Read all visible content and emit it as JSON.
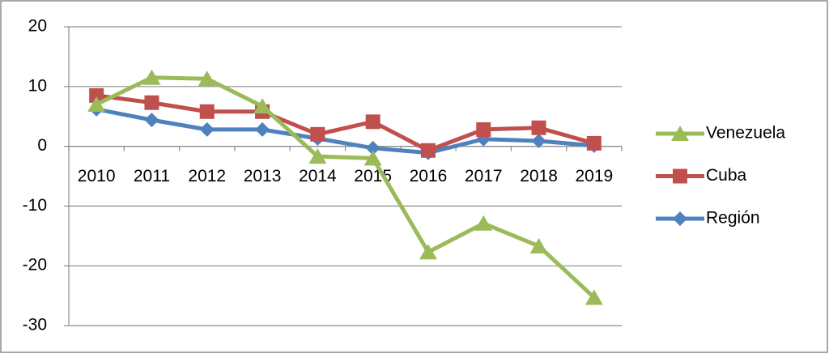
{
  "chart_data": {
    "type": "line",
    "categories": [
      "2010",
      "2011",
      "2012",
      "2013",
      "2014",
      "2015",
      "2016",
      "2017",
      "2018",
      "2019"
    ],
    "series": [
      {
        "name": "Venezuela",
        "color": "#9bbb59",
        "marker": "triangle",
        "values": [
          7,
          11.5,
          11.3,
          6.7,
          -1.7,
          -2,
          -17.7,
          -12.9,
          -16.7,
          -25.3
        ]
      },
      {
        "name": "Cuba",
        "color": "#c0504d",
        "marker": "square",
        "values": [
          8.5,
          7.3,
          5.8,
          5.8,
          2.0,
          4.1,
          -0.7,
          2.8,
          3.1,
          0.5
        ]
      },
      {
        "name": "Región",
        "color": "#4f81bd",
        "marker": "diamond",
        "values": [
          6.2,
          4.4,
          2.8,
          2.8,
          1.3,
          -0.3,
          -1.1,
          1.2,
          0.9,
          0.1
        ]
      }
    ],
    "ylim": [
      -30,
      20
    ],
    "yticks": [
      -30,
      -20,
      -10,
      0,
      10,
      20
    ],
    "grid": true,
    "legend": "right"
  }
}
